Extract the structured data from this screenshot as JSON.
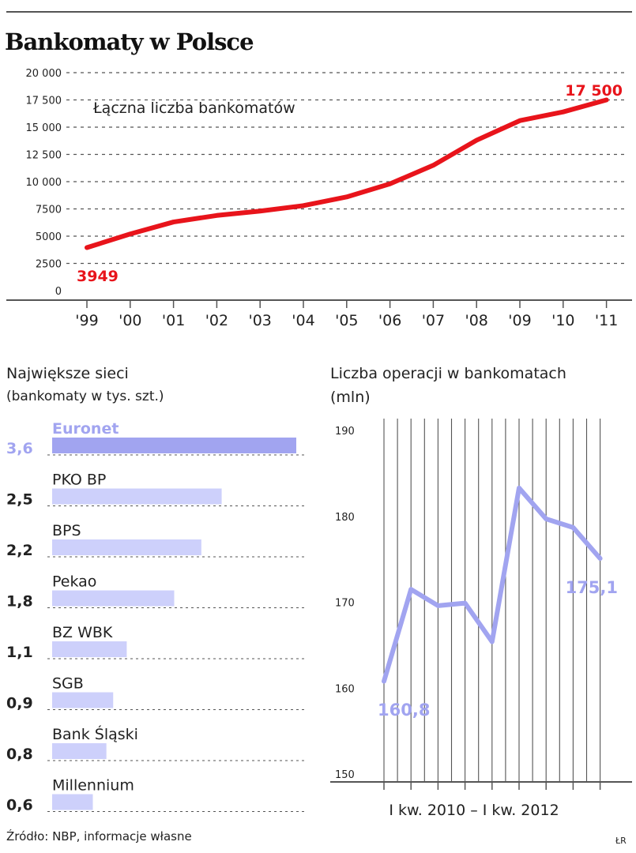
{
  "title": "Bankomaty w Polsce",
  "source": "Źródło: NBP, informacje własne",
  "initials": "ŁR",
  "colors": {
    "red": "#e8141b",
    "lavender": "#a1a4f0",
    "lavender_light": "#cdd0fb",
    "ink": "#222222",
    "grid": "#555555"
  },
  "chart_data": [
    {
      "type": "line",
      "title": "",
      "annotation": "Łączna liczba bankomatów",
      "x": [
        "'99",
        "'00",
        "'01",
        "'02",
        "'03",
        "'04",
        "'05",
        "'06",
        "'07",
        "'08",
        "'09",
        "'10",
        "'11"
      ],
      "yticks": [
        "20 000",
        "17 500",
        "15 000",
        "12 500",
        "10 000",
        "7500",
        "5000",
        "2500",
        "0"
      ],
      "ylim": [
        0,
        20000
      ],
      "series": [
        {
          "values": [
            3949,
            5200,
            6300,
            6900,
            7300,
            7800,
            8600,
            9800,
            11500,
            13800,
            15600,
            16400,
            17500
          ]
        }
      ],
      "data_labels": {
        "first": "3949",
        "last": "17 500"
      },
      "grid": "dashed horizontal",
      "color": "#e8141b"
    },
    {
      "type": "bar",
      "title": "Największe sieci",
      "subtitle": "(bankomaty w tys. szt.)",
      "categories": [
        "Euronet",
        "PKO BP",
        "BPS",
        "Pekao",
        "BZ WBK",
        "SGB",
        "Bank Śląski",
        "Millennium"
      ],
      "values": [
        3.6,
        2.5,
        2.2,
        1.8,
        1.1,
        0.9,
        0.8,
        0.6
      ],
      "value_labels": [
        "3,6",
        "2,5",
        "2,2",
        "1,8",
        "1,1",
        "0,9",
        "0,8",
        "0,6"
      ],
      "highlight": "Euronet",
      "orientation": "horizontal"
    },
    {
      "type": "line",
      "title": "Liczba operacji w bankomatach",
      "subtitle": "(mln)",
      "xlabel": "I kw. 2010 – I kw. 2012",
      "x_count": 9,
      "yticks": [
        "190",
        "180",
        "170",
        "160",
        "150"
      ],
      "ylim": [
        150,
        190
      ],
      "series": [
        {
          "values": [
            160.8,
            171.5,
            169.6,
            169.9,
            165.4,
            183.3,
            179.7,
            178.7,
            175.1
          ]
        }
      ],
      "data_labels": {
        "first": "160,8",
        "last": "175,1"
      },
      "grid": "vertical",
      "color": "#a1a4f0"
    }
  ]
}
